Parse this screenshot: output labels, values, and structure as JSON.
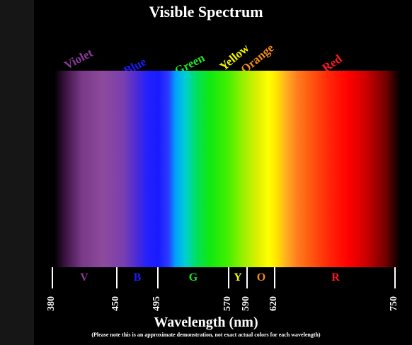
{
  "title": "Visible Spectrum",
  "xlabel": "Wavelength (nm)",
  "note": "(Please note this is an approximate demonstration, not exact actual colors for each wavelength)",
  "wavelength_range": [
    380,
    750
  ],
  "bands": [
    {
      "name": "Violet",
      "letter": "V",
      "start": 380,
      "end": 450,
      "color": "#8a3a9a"
    },
    {
      "name": "Blue",
      "letter": "B",
      "start": 450,
      "end": 495,
      "color": "#1a1aff"
    },
    {
      "name": "Green",
      "letter": "G",
      "start": 495,
      "end": 570,
      "color": "#1fe81f"
    },
    {
      "name": "Yellow",
      "letter": "Y",
      "start": 570,
      "end": 590,
      "color": "#f2f200"
    },
    {
      "name": "Orange",
      "letter": "O",
      "start": 590,
      "end": 620,
      "color": "#f28c1a"
    },
    {
      "name": "Red",
      "letter": "R",
      "start": 620,
      "end": 750,
      "color": "#ff1a1a"
    }
  ],
  "ticks": [
    "380",
    "450",
    "495",
    "570",
    "590",
    "620",
    "750"
  ],
  "colors": {
    "background": "#000000",
    "text": "#ffffff"
  }
}
